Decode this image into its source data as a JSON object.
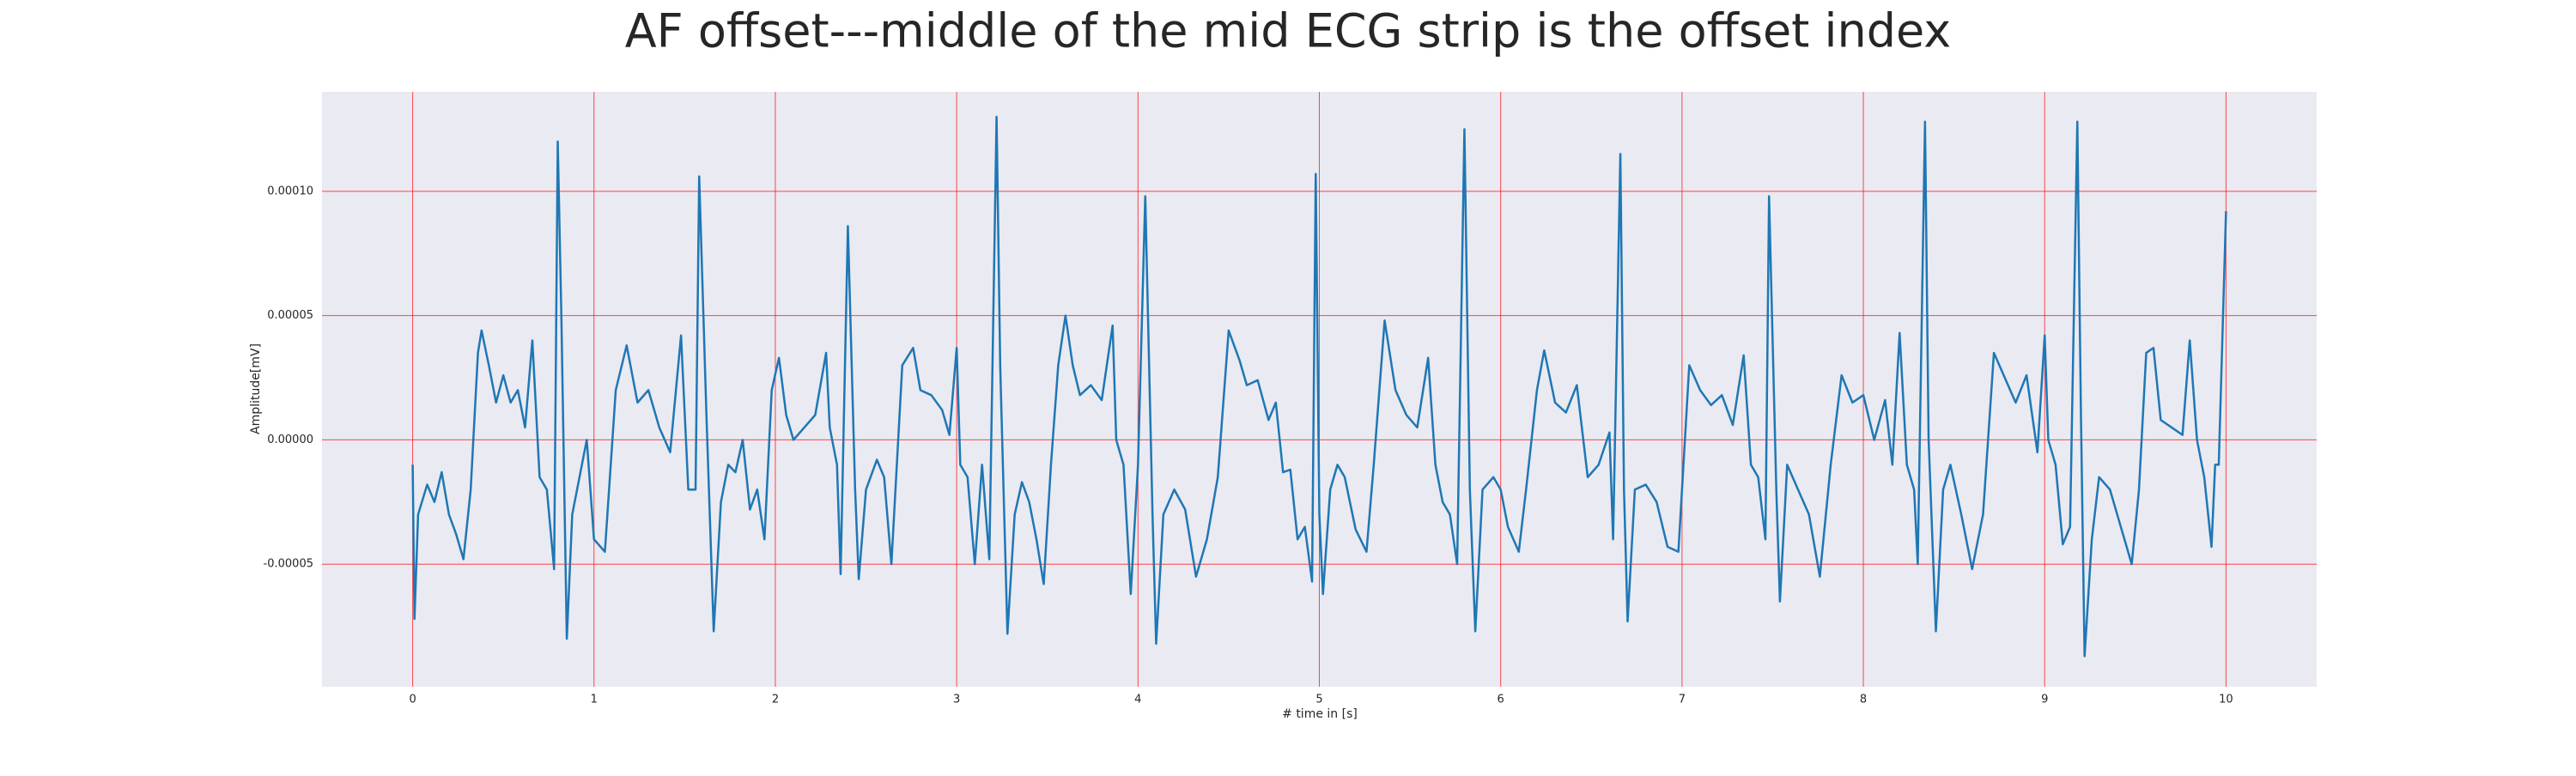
{
  "chart_data": {
    "type": "line",
    "title": "AF offset---middle of the mid ECG strip is the offset index",
    "x_label": "# time in [s]",
    "y_label": "Amplitude[mV]",
    "xlim": [
      -0.5,
      10.5
    ],
    "ylim": [
      -9.93e-05,
      0.00014
    ],
    "xticks": [
      0,
      1,
      2,
      3,
      4,
      5,
      6,
      7,
      8,
      9,
      10
    ],
    "yticks": [
      {
        "value": -5e-05,
        "label": "-0.00005"
      },
      {
        "value": 0,
        "label": "0.00000"
      },
      {
        "value": 5e-05,
        "label": "0.00005"
      },
      {
        "value": 0.0001,
        "label": "0.00010"
      }
    ],
    "grid": true,
    "grid_color": "#ff0000",
    "background": "#eaeaf2",
    "x": [
      0,
      0.01,
      0.03,
      0.08,
      0.12,
      0.16,
      0.2,
      0.24,
      0.28,
      0.32,
      0.36,
      0.38,
      0.42,
      0.46,
      0.5,
      0.54,
      0.58,
      0.62,
      0.66,
      0.7,
      0.74,
      0.78,
      0.8,
      0.82,
      0.85,
      0.88,
      0.92,
      0.96,
      1.0,
      1.06,
      1.12,
      1.18,
      1.24,
      1.3,
      1.36,
      1.42,
      1.48,
      1.52,
      1.56,
      1.58,
      1.62,
      1.66,
      1.7,
      1.74,
      1.78,
      1.82,
      1.86,
      1.9,
      1.94,
      1.98,
      2.02,
      2.06,
      2.1,
      2.16,
      2.22,
      2.28,
      2.3,
      2.34,
      2.36,
      2.4,
      2.44,
      2.46,
      2.5,
      2.56,
      2.6,
      2.64,
      2.7,
      2.76,
      2.8,
      2.86,
      2.92,
      2.96,
      3.0,
      3.02,
      3.06,
      3.1,
      3.14,
      3.18,
      3.22,
      3.24,
      3.28,
      3.32,
      3.36,
      3.4,
      3.44,
      3.48,
      3.52,
      3.56,
      3.6,
      3.64,
      3.68,
      3.74,
      3.8,
      3.86,
      3.88,
      3.92,
      3.96,
      4.0,
      4.04,
      4.08,
      4.1,
      4.14,
      4.2,
      4.26,
      4.32,
      4.38,
      4.44,
      4.5,
      4.56,
      4.6,
      4.66,
      4.72,
      4.76,
      4.8,
      4.84,
      4.88,
      4.92,
      4.96,
      4.98,
      5.0,
      5.02,
      5.06,
      5.1,
      5.14,
      5.2,
      5.26,
      5.3,
      5.36,
      5.42,
      5.48,
      5.54,
      5.6,
      5.64,
      5.68,
      5.72,
      5.76,
      5.8,
      5.83,
      5.86,
      5.9,
      5.96,
      6.0,
      6.04,
      6.1,
      6.14,
      6.2,
      6.24,
      6.3,
      6.36,
      6.42,
      6.48,
      6.54,
      6.6,
      6.62,
      6.66,
      6.68,
      6.7,
      6.74,
      6.8,
      6.86,
      6.92,
      6.98,
      7.04,
      7.1,
      7.16,
      7.22,
      7.28,
      7.34,
      7.38,
      7.42,
      7.46,
      7.48,
      7.52,
      7.54,
      7.58,
      7.64,
      7.7,
      7.76,
      7.82,
      7.88,
      7.94,
      8.0,
      8.06,
      8.12,
      8.16,
      8.2,
      8.24,
      8.28,
      8.3,
      8.34,
      8.36,
      8.4,
      8.44,
      8.48,
      8.54,
      8.6,
      8.66,
      8.72,
      8.78,
      8.84,
      8.9,
      8.96,
      9.0,
      9.02,
      9.06,
      9.1,
      9.14,
      9.18,
      9.2,
      9.22,
      9.26,
      9.3,
      9.36,
      9.42,
      9.48,
      9.52,
      9.56,
      9.6,
      9.64,
      9.7,
      9.76,
      9.8,
      9.84,
      9.88,
      9.92,
      9.94,
      9.96,
      10.0
    ],
    "series": [
      {
        "color": "#1f77b4",
        "values": [
          -1e-05,
          -7.2e-05,
          -3e-05,
          -1.8e-05,
          -2.5e-05,
          -1.3e-05,
          -3e-05,
          -3.8e-05,
          -4.8e-05,
          -2e-05,
          3.5e-05,
          4.4e-05,
          3e-05,
          1.5e-05,
          2.6e-05,
          1.5e-05,
          2e-05,
          5e-06,
          4e-05,
          -1.5e-05,
          -2e-05,
          -5.2e-05,
          0.00012,
          5e-05,
          -8e-05,
          -3e-05,
          -1.5e-05,
          0,
          -4e-05,
          -4.5e-05,
          2e-05,
          3.8e-05,
          1.5e-05,
          2e-05,
          5e-06,
          -5e-06,
          4.2e-05,
          -2e-05,
          -2e-05,
          0.000106,
          1e-05,
          -7.7e-05,
          -2.5e-05,
          -1e-05,
          -1.3e-05,
          0,
          -2.8e-05,
          -2e-05,
          -4e-05,
          2e-05,
          3.3e-05,
          1e-05,
          0,
          5e-06,
          1e-05,
          3.5e-05,
          5e-06,
          -1e-05,
          -5.4e-05,
          8.6e-05,
          -2e-05,
          -5.6e-05,
          -2e-05,
          -8e-06,
          -1.5e-05,
          -5e-05,
          3e-05,
          3.7e-05,
          2e-05,
          1.8e-05,
          1.2e-05,
          2e-06,
          3.7e-05,
          -1e-05,
          -1.5e-05,
          -5e-05,
          -1e-05,
          -4.8e-05,
          0.00013,
          3e-05,
          -7.8e-05,
          -3e-05,
          -1.7e-05,
          -2.5e-05,
          -4e-05,
          -5.8e-05,
          -1e-05,
          3e-05,
          5e-05,
          3e-05,
          1.8e-05,
          2.2e-05,
          1.6e-05,
          4.6e-05,
          0,
          -1e-05,
          -6.2e-05,
          -1e-05,
          9.8e-05,
          -3e-05,
          -8.2e-05,
          -3e-05,
          -2e-05,
          -2.8e-05,
          -5.5e-05,
          -4e-05,
          -1.5e-05,
          4.4e-05,
          3.2e-05,
          2.2e-05,
          2.4e-05,
          8e-06,
          1.5e-05,
          -1.3e-05,
          -1.2e-05,
          -4e-05,
          -3.5e-05,
          -5.7e-05,
          0.000107,
          -3e-05,
          -6.2e-05,
          -2e-05,
          -1e-05,
          -1.5e-05,
          -3.6e-05,
          -4.5e-05,
          -1e-05,
          4.8e-05,
          2e-05,
          1e-05,
          5e-06,
          3.3e-05,
          -1e-05,
          -2.5e-05,
          -3e-05,
          -5e-05,
          0.000125,
          -2e-05,
          -7.7e-05,
          -2e-05,
          -1.5e-05,
          -2e-05,
          -3.5e-05,
          -4.5e-05,
          -2e-05,
          2e-05,
          3.6e-05,
          1.5e-05,
          1.1e-05,
          2.2e-05,
          -1.5e-05,
          -1e-05,
          3e-06,
          -4e-05,
          0.000115,
          -2e-05,
          -7.3e-05,
          -2e-05,
          -1.8e-05,
          -2.5e-05,
          -4.3e-05,
          -4.5e-05,
          3e-05,
          2e-05,
          1.4e-05,
          1.8e-05,
          6e-06,
          3.4e-05,
          -1e-05,
          -1.5e-05,
          -4e-05,
          9.8e-05,
          -2e-05,
          -6.5e-05,
          -1e-05,
          -2e-05,
          -3e-05,
          -5.5e-05,
          -1e-05,
          2.6e-05,
          1.5e-05,
          1.8e-05,
          0,
          1.6e-05,
          -1e-05,
          4.3e-05,
          -1e-05,
          -2e-05,
          -5e-05,
          0.000128,
          0,
          -7.7e-05,
          -2e-05,
          -1e-05,
          -3e-05,
          -5.2e-05,
          -3e-05,
          3.5e-05,
          2.5e-05,
          1.5e-05,
          2.6e-05,
          -5e-06,
          4.2e-05,
          0,
          -1e-05,
          -4.2e-05,
          -3.5e-05,
          0.000128,
          1e-05,
          -8.7e-05,
          -4e-05,
          -1.5e-05,
          -2e-05,
          -3.5e-05,
          -5e-05,
          -2e-05,
          3.5e-05,
          3.7e-05,
          8e-06,
          5e-06,
          2e-06,
          4e-05,
          0,
          -1.5e-05,
          -4.3e-05,
          -1e-05,
          -1e-05,
          9.2e-05
        ]
      }
    ]
  }
}
